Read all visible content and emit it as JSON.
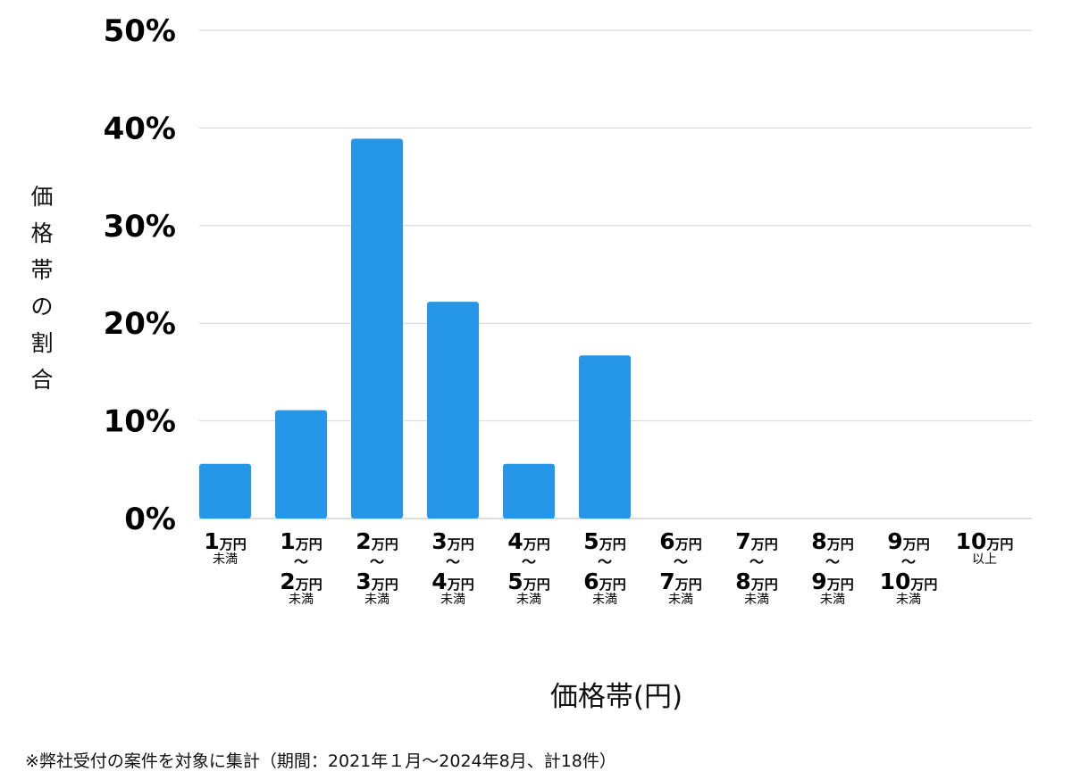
{
  "chart_data": {
    "type": "bar",
    "ylabel": "価格帯の割合",
    "xlabel": "価格帯(円)",
    "ylim": [
      0,
      50
    ],
    "yticks": [
      "0%",
      "10%",
      "20%",
      "30%",
      "40%",
      "50%"
    ],
    "ytick_values": [
      0,
      10,
      20,
      30,
      40,
      50
    ],
    "grid": true,
    "bar_color": "#2596e8",
    "categories": [
      {
        "from": "1",
        "to": "",
        "suffix": "未満"
      },
      {
        "from": "1",
        "to": "2",
        "suffix": "未満"
      },
      {
        "from": "2",
        "to": "3",
        "suffix": "未満"
      },
      {
        "from": "3",
        "to": "4",
        "suffix": "未満"
      },
      {
        "from": "4",
        "to": "5",
        "suffix": "未満"
      },
      {
        "from": "5",
        "to": "6",
        "suffix": "未満"
      },
      {
        "from": "6",
        "to": "7",
        "suffix": "未満"
      },
      {
        "from": "7",
        "to": "8",
        "suffix": "未満"
      },
      {
        "from": "8",
        "to": "9",
        "suffix": "未満"
      },
      {
        "from": "9",
        "to": "10",
        "suffix": "未満"
      },
      {
        "from": "10",
        "to": "",
        "suffix": "以上"
      }
    ],
    "unit": "万円",
    "range_mark": "〜",
    "values": [
      5.6,
      11.1,
      38.9,
      22.2,
      5.6,
      16.7,
      0,
      0,
      0,
      0,
      0
    ]
  },
  "note": "※弊社受付の案件を対象に集計（期間：2021年１月〜2024年8月、計18件）"
}
